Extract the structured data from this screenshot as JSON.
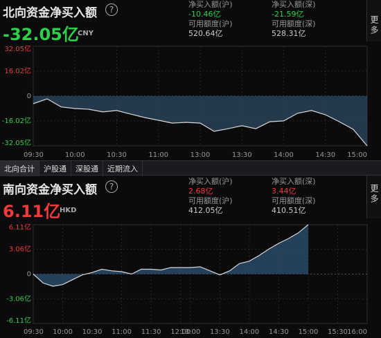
{
  "north": {
    "title": "北向资金净买入额",
    "amount": "-32.05亿",
    "currency": "CNY",
    "stats": [
      {
        "label": "净买入额(沪)",
        "value": "-10.46亿"
      },
      {
        "label": "净买入额(深)",
        "value": "-21.59亿"
      },
      {
        "label": "可用额度(沪)",
        "value": "520.64亿"
      },
      {
        "label": "可用额度(深)",
        "value": "528.31亿"
      }
    ]
  },
  "tabs": [
    "北向合计",
    "沪股通",
    "深股通",
    "近期流入"
  ],
  "south": {
    "title": "南向资金净买入额",
    "amount": "6.11亿",
    "currency": "HKD",
    "stats": [
      {
        "label": "净买入额(沪)",
        "value": "2.68亿"
      },
      {
        "label": "净买入额(深)",
        "value": "3.44亿"
      },
      {
        "label": "可用额度(沪)",
        "value": "412.05亿"
      },
      {
        "label": "可用额度(深)",
        "value": "410.51亿"
      }
    ]
  },
  "more": "更多",
  "chart_data": [
    {
      "type": "area",
      "color": "#d8d8d8",
      "fill": "#2a4258",
      "categories": [
        "09:30",
        "09:40",
        "09:50",
        "10:00",
        "10:10",
        "10:20",
        "10:30",
        "10:40",
        "10:50",
        "11:00",
        "11:10",
        "11:20",
        "13:00",
        "13:10",
        "13:20",
        "13:30",
        "13:40",
        "13:50",
        "14:00",
        "14:10",
        "14:20",
        "14:30",
        "14:40",
        "14:50",
        "15:00"
      ],
      "values": [
        -4.9,
        -1.8,
        -7,
        -8,
        -8.5,
        -10.2,
        -9.3,
        -11.6,
        -13.8,
        -15.6,
        -17.4,
        -16.9,
        -17.4,
        -22.7,
        -21,
        -19.1,
        -21,
        -16.5,
        -16,
        -11.1,
        -9.3,
        -12,
        -16.5,
        -21.4,
        -32.05
      ],
      "xticks": [
        "09:30",
        "10:00",
        "10:30",
        "11:00",
        "13:00",
        "13:30",
        "14:00",
        "14:30",
        "15:00"
      ],
      "ylim": [
        -32.05,
        32.05
      ],
      "yticks": [
        {
          "value": 32.05,
          "label": "32.05亿"
        },
        {
          "value": 16.02,
          "label": "16.02亿"
        },
        0,
        {
          "value": -16.02,
          "label": "-16.02亿"
        },
        {
          "value": -32.05,
          "label": "-32.05亿"
        }
      ],
      "grid": true
    },
    {
      "type": "area",
      "color": "#d8d8d8",
      "fill": "#2a4a68",
      "categories": [
        "09:30",
        "09:40",
        "09:50",
        "10:00",
        "10:10",
        "10:20",
        "10:30",
        "10:40",
        "10:50",
        "11:00",
        "11:10",
        "11:20",
        "11:30",
        "11:40",
        "11:50",
        "12:00",
        "13:00",
        "13:10",
        "13:20",
        "13:30",
        "13:40",
        "13:50",
        "14:00",
        "14:10",
        "14:20",
        "14:30",
        "14:40",
        "14:50",
        "15:00",
        "15:10",
        "15:20",
        "15:30",
        "15:40",
        "15:50",
        "16:00"
      ],
      "values": [
        0,
        -1.1,
        -1.5,
        -1.3,
        -0.7,
        -0.1,
        0.2,
        0.6,
        0.4,
        0.3,
        0,
        0.6,
        0.6,
        0.5,
        0.8,
        0.8,
        0.8,
        0.9,
        0.4,
        -0.1,
        0.4,
        1.3,
        1.6,
        2.3,
        3.1,
        3.8,
        4.4,
        5.1,
        6.11,
        null,
        null,
        null,
        null,
        null,
        null
      ],
      "xticks": [
        "09:30",
        "10:00",
        "10:30",
        "11:00",
        "11:30",
        "12:00",
        "13:00",
        "13:30",
        "14:00",
        "14:30",
        "15:00",
        "15:30",
        "16:00"
      ],
      "ylim": [
        -6.11,
        6.11
      ],
      "yticks": [
        {
          "value": 6.11,
          "label": "6.11亿"
        },
        {
          "value": 3.06,
          "label": "3.06亿"
        },
        0,
        {
          "value": -3.06,
          "label": "-3.06亿"
        },
        {
          "value": -6.11,
          "label": "-6.11亿"
        }
      ],
      "grid": true
    }
  ]
}
